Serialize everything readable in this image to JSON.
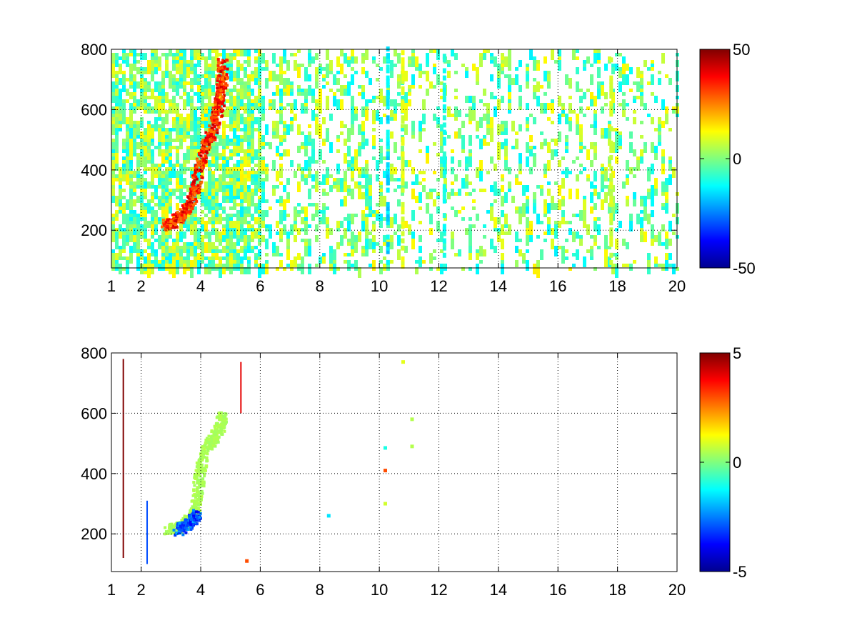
{
  "chart_data": [
    {
      "type": "heatmap",
      "title": "",
      "xlabel": "",
      "ylabel": "",
      "xlim": [
        1,
        20
      ],
      "ylim": [
        75,
        800
      ],
      "xticks": [
        1,
        2,
        4,
        6,
        8,
        10,
        12,
        14,
        16,
        18,
        20
      ],
      "xtick_labels": [
        "1",
        "2",
        "4",
        "6",
        "8",
        "10",
        "12",
        "14",
        "16",
        "18",
        "20"
      ],
      "yticks": [
        200,
        400,
        600,
        800
      ],
      "ytick_labels": [
        "200",
        "400",
        "600",
        "800"
      ],
      "grid": true,
      "colormap": "jet",
      "clim": [
        -50,
        50
      ],
      "colorbar_ticks": [
        50,
        0,
        -50
      ],
      "colorbar_labels": [
        "50",
        "0",
        "-50"
      ],
      "features": [
        {
          "kind": "ridge",
          "points": [
            [
              2.8,
              220
            ],
            [
              3.0,
              230
            ],
            [
              3.3,
              250
            ],
            [
              3.6,
              290
            ],
            [
              3.8,
              350
            ],
            [
              3.9,
              420
            ],
            [
              4.1,
              480
            ],
            [
              4.3,
              520
            ],
            [
              4.5,
              580
            ],
            [
              4.6,
              640
            ],
            [
              4.7,
              700
            ],
            [
              4.7,
              760
            ]
          ],
          "value": 40
        },
        {
          "kind": "column",
          "x": 10.3,
          "from": 75,
          "to": 800,
          "value": -15
        },
        {
          "kind": "column",
          "x": 10.8,
          "from": 75,
          "to": 800,
          "value": 10
        },
        {
          "kind": "column",
          "x": 12.2,
          "from": 75,
          "to": 800,
          "value": -10
        },
        {
          "kind": "column",
          "x": 17.8,
          "from": 75,
          "to": 800,
          "value": 8
        }
      ]
    },
    {
      "type": "heatmap",
      "title": "",
      "xlabel": "",
      "ylabel": "",
      "xlim": [
        1,
        20
      ],
      "ylim": [
        75,
        800
      ],
      "xticks": [
        1,
        2,
        4,
        6,
        8,
        10,
        12,
        14,
        16,
        18,
        20
      ],
      "xtick_labels": [
        "1",
        "2",
        "4",
        "6",
        "8",
        "10",
        "12",
        "14",
        "16",
        "18",
        "20"
      ],
      "yticks": [
        200,
        400,
        600,
        800
      ],
      "ytick_labels": [
        "200",
        "400",
        "600",
        "800"
      ],
      "grid": true,
      "colormap": "jet",
      "clim": [
        -5,
        5
      ],
      "colorbar_ticks": [
        5,
        0,
        -5
      ],
      "colorbar_labels": [
        "5",
        "0",
        "-5"
      ],
      "features": [
        {
          "kind": "ridge",
          "points": [
            [
              2.9,
              220
            ],
            [
              3.2,
              225
            ],
            [
              3.5,
              240
            ],
            [
              3.7,
              260
            ],
            [
              3.8,
              300
            ],
            [
              3.9,
              380
            ],
            [
              4.0,
              440
            ],
            [
              4.2,
              500
            ],
            [
              4.4,
              520
            ],
            [
              4.6,
              560
            ],
            [
              4.7,
              600
            ]
          ],
          "value": 0.5
        },
        {
          "kind": "ridge",
          "points": [
            [
              3.2,
              215
            ],
            [
              3.5,
              235
            ],
            [
              3.7,
              250
            ],
            [
              3.8,
              270
            ]
          ],
          "value": -3.5
        },
        {
          "kind": "line",
          "x": 1.4,
          "from": 120,
          "to": 780,
          "value": 5
        },
        {
          "kind": "line",
          "x": 2.2,
          "from": 100,
          "to": 310,
          "value": -3
        },
        {
          "kind": "line",
          "x": 5.35,
          "from": 600,
          "to": 770,
          "value": 4
        },
        {
          "kind": "spot",
          "x": 8.3,
          "y": 260,
          "value": -1.5
        },
        {
          "kind": "spot",
          "x": 10.2,
          "y": 410,
          "value": 3
        },
        {
          "kind": "spot",
          "x": 10.2,
          "y": 300,
          "value": 0.8
        },
        {
          "kind": "spot",
          "x": 10.2,
          "y": 485,
          "value": -1
        },
        {
          "kind": "spot",
          "x": 10.8,
          "y": 770,
          "value": 1
        },
        {
          "kind": "spot",
          "x": 11.1,
          "y": 580,
          "value": 0.5
        },
        {
          "kind": "spot",
          "x": 11.1,
          "y": 490,
          "value": 0.5
        },
        {
          "kind": "spot",
          "x": 5.55,
          "y": 110,
          "value": 3
        }
      ]
    }
  ]
}
